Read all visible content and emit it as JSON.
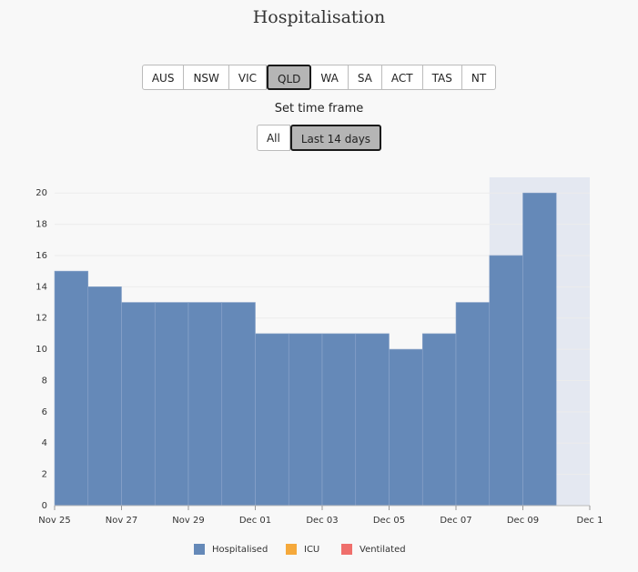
{
  "regions": {
    "options": [
      "AUS",
      "NSW",
      "VIC",
      "QLD",
      "WA",
      "SA",
      "ACT",
      "TAS",
      "NT"
    ],
    "selected": "QLD"
  },
  "time_frame": {
    "label": "Set time frame",
    "options": [
      "All",
      "Last 14 days"
    ],
    "selected": "Last 14 days"
  },
  "chart_data": {
    "type": "bar",
    "title": "Hospitalisation",
    "categories": [
      "Nov 25",
      null,
      "Nov 27",
      null,
      "Nov 29",
      null,
      "Dec 01",
      null,
      "Dec 03",
      null,
      "Dec 05",
      null,
      "Dec 07",
      null,
      "Dec 09",
      null,
      "Dec 1"
    ],
    "series": [
      {
        "name": "Hospitalised",
        "color": "#6589b8",
        "values": [
          15,
          14,
          13,
          13,
          13,
          13,
          11,
          11,
          11,
          11,
          10,
          11,
          13,
          16,
          20,
          null,
          null
        ]
      },
      {
        "name": "ICU",
        "color": "#f5a93b",
        "values": [
          null,
          null,
          null,
          null,
          null,
          null,
          null,
          null,
          null,
          null,
          null,
          null,
          null,
          null,
          null,
          null,
          null
        ]
      },
      {
        "name": "Ventilated",
        "color": "#ef6f6c",
        "values": [
          null,
          null,
          null,
          null,
          null,
          null,
          null,
          null,
          null,
          null,
          null,
          null,
          null,
          null,
          null,
          null,
          null
        ]
      }
    ],
    "ylim": [
      0,
      21
    ],
    "yticks": [
      0,
      2,
      4,
      6,
      8,
      10,
      12,
      14,
      16,
      18,
      20
    ],
    "grid": true
  }
}
